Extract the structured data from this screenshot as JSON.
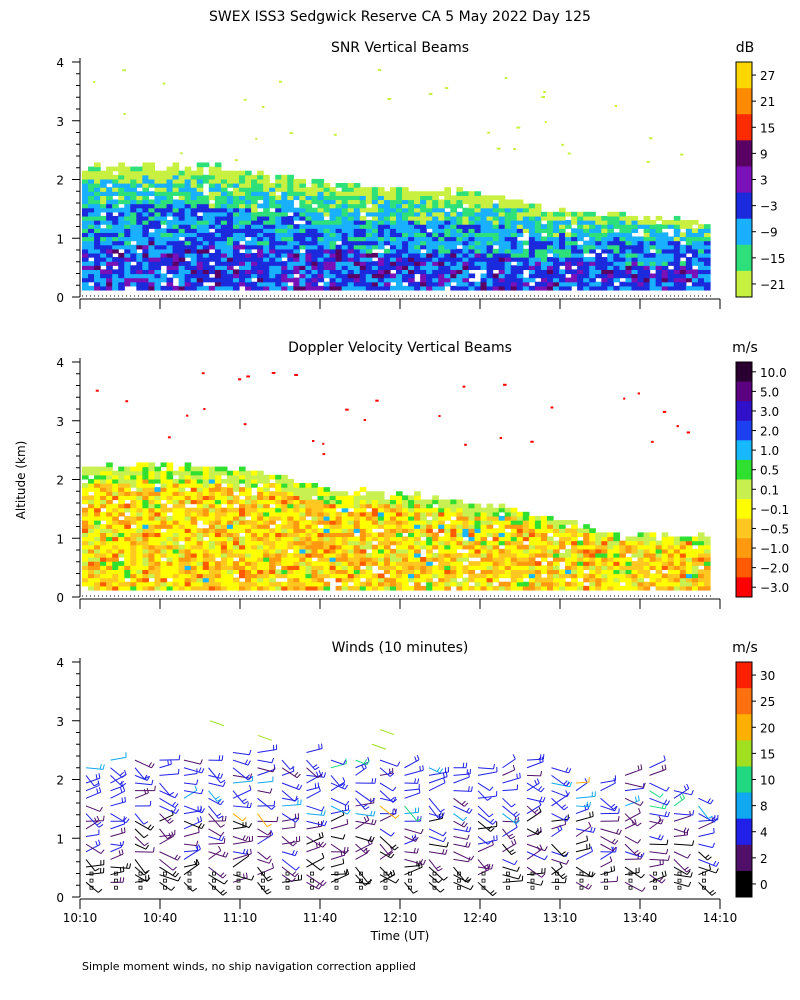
{
  "main_title": "SWEX ISS3 Sedgwick Reserve CA   5 May 2022 Day 125",
  "ylabel": "Altitude (km)",
  "xlabel": "Time (UT)",
  "footnote": "Simple moment winds, no ship navigation correction applied",
  "chart_data": [
    {
      "type": "heatmap",
      "title": "SNR Vertical Beams",
      "ylabel": "Altitude (km)",
      "ylim": [
        0,
        4
      ],
      "yticks": [
        0,
        1,
        2,
        3,
        4
      ],
      "xlim": [
        10.1667,
        14.1667
      ],
      "colorbar": {
        "unit": "dB",
        "tick_labels": [
          "27",
          "21",
          "15",
          "9",
          "3",
          "−3",
          "−9",
          "−15",
          "−21"
        ],
        "colors": [
          "#ffd700",
          "#ff8c00",
          "#ff2a00",
          "#5a0064",
          "#7a10b8",
          "#1a2adc",
          "#18b0ff",
          "#2ee07a",
          "#c8f040"
        ]
      },
      "top_km_approx": [
        2.2,
        2.2,
        2.2,
        2.2,
        2.1,
        2.0,
        1.9,
        1.85,
        1.8,
        1.75,
        1.7,
        1.5,
        1.4,
        1.35,
        1.3,
        1.3
      ]
    },
    {
      "type": "heatmap",
      "title": "Doppler Velocity Vertical Beams",
      "ylabel": "Altitude (km)",
      "ylim": [
        0,
        4
      ],
      "yticks": [
        0,
        1,
        2,
        3,
        4
      ],
      "colorbar": {
        "unit": "m/s",
        "tick_labels": [
          "10.0",
          "5.0",
          "3.0",
          "2.0",
          "1.0",
          "0.5",
          "0.1",
          "−0.1",
          "−0.5",
          "−1.0",
          "−2.0",
          "−3.0"
        ],
        "colors": [
          "#2a0030",
          "#5a0080",
          "#3010c8",
          "#1c40f0",
          "#18b8ff",
          "#30e030",
          "#c8f050",
          "#ffff00",
          "#ffc820",
          "#ff9a10",
          "#ff5a00",
          "#ff0000"
        ]
      },
      "top_km_approx": [
        2.2,
        2.2,
        2.2,
        2.2,
        2.15,
        2.0,
        1.8,
        1.75,
        1.7,
        1.6,
        1.5,
        1.35,
        1.2,
        1.0,
        1.0,
        1.0
      ]
    },
    {
      "type": "wind_barbs",
      "title": "Winds (10 minutes)",
      "ylabel": "Altitude (km)",
      "ylim": [
        0,
        4
      ],
      "yticks": [
        0,
        1,
        2,
        3,
        4
      ],
      "xticks": [
        "10:10",
        "10:40",
        "11:10",
        "11:40",
        "12:10",
        "12:40",
        "13:10",
        "13:40",
        "14:10"
      ],
      "colorbar": {
        "unit": "m/s",
        "tick_labels": [
          "30",
          "25",
          "20",
          "15",
          "10",
          "8",
          "4",
          "2",
          "0"
        ],
        "colors": [
          "#ff2000",
          "#ff7010",
          "#ffb000",
          "#a0e020",
          "#20d880",
          "#10a8f0",
          "#2020e8",
          "#50106a",
          "#000000"
        ]
      },
      "profile_top_km": [
        2.3,
        2.4,
        2.4,
        2.4,
        2.4,
        2.4,
        2.5,
        2.5,
        2.4,
        2.5,
        2.4,
        2.4,
        2.4,
        2.3,
        2.3,
        2.2,
        2.3,
        2.3,
        2.4,
        2.3,
        2.0,
        2.0,
        2.1,
        2.2,
        1.9,
        1.8
      ],
      "barb_color_names": [
        "black",
        "darkpurple",
        "blue",
        "cyan",
        "green",
        "yellow"
      ]
    }
  ]
}
